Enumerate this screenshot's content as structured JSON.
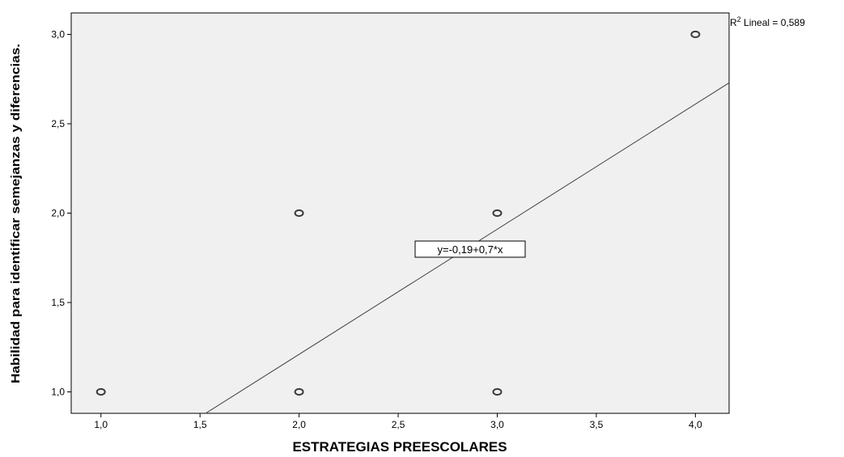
{
  "chart_data": {
    "type": "scatter",
    "xlabel": "ESTRATEGIAS PREESCOLARES",
    "ylabel": "Habilidad para identificar semejanzas y diferencias.",
    "xlim": [
      0.85,
      4.17
    ],
    "ylim": [
      0.88,
      3.12
    ],
    "x_ticks": [
      "1,0",
      "1,5",
      "2,0",
      "2,5",
      "3,0",
      "3,5",
      "4,0"
    ],
    "x_tick_values": [
      1.0,
      1.5,
      2.0,
      2.5,
      3.0,
      3.5,
      4.0
    ],
    "y_ticks": [
      "1,0",
      "1,5",
      "2,0",
      "2,5",
      "3,0"
    ],
    "y_tick_values": [
      1.0,
      1.5,
      2.0,
      2.5,
      3.0
    ],
    "points": [
      {
        "x": 1,
        "y": 1
      },
      {
        "x": 2,
        "y": 1
      },
      {
        "x": 2,
        "y": 2
      },
      {
        "x": 3,
        "y": 1
      },
      {
        "x": 3,
        "y": 2
      },
      {
        "x": 4,
        "y": 3
      }
    ],
    "fit_line": {
      "intercept": -0.19,
      "slope": 0.7
    },
    "equation_label": "y=-0,19+0,7*x",
    "r2_prefix": "R",
    "r2_sup": "2",
    "r2_suffix": " Lineal = 0,589",
    "colors": {
      "plot_bg": "#f0f0f0",
      "line": "#404040",
      "marker": "#3c3c3c"
    },
    "grid": false
  }
}
